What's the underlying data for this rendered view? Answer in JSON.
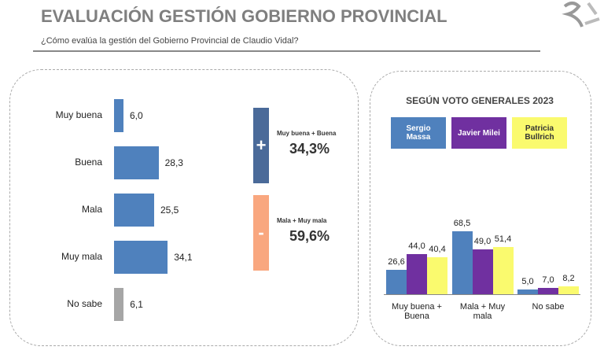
{
  "title": "EVALUACIÓN GESTIÓN GOBIERNO PROVINCIAL",
  "subtitle": "¿Cómo evalúa la gestión del Gobierno Provincial de Claudio Vidal?",
  "summary": [
    {
      "sign": "+",
      "label": "Muy buena + Buena",
      "value": "34,3%",
      "color": "#4a6a99"
    },
    {
      "sign": "-",
      "label": "Mala + Muy mala",
      "value": "59,6%",
      "color": "#f9a77f"
    }
  ],
  "chart_data": [
    {
      "type": "hbar",
      "categories": [
        "Muy buena",
        "Buena",
        "Mala",
        "Muy mala",
        "No sabe"
      ],
      "values": [
        6.0,
        28.3,
        25.5,
        34.1,
        6.1
      ],
      "value_labels": [
        "6,0",
        "28,3",
        "25,5",
        "34,1",
        "6,1"
      ],
      "colors": [
        "#4f81bd",
        "#4f81bd",
        "#4f81bd",
        "#4f81bd",
        "#a6a6a6"
      ]
    },
    {
      "type": "bar",
      "title": "SEGÚN VOTO GENERALES 2023",
      "categories": [
        "Muy buena + Buena",
        "Mala + Muy mala",
        "No sabe"
      ],
      "series": [
        {
          "name": "Sergio Massa",
          "color": "#4f81bd",
          "values": [
            26.6,
            68.5,
            5.0
          ],
          "value_labels": [
            "26,6",
            "68,5",
            "5,0"
          ]
        },
        {
          "name": "Javier Milei",
          "color": "#7030a0",
          "values": [
            44.0,
            49.0,
            7.0
          ],
          "value_labels": [
            "44,0",
            "49,0",
            "7,0"
          ]
        },
        {
          "name": "Patricia Bullrich",
          "color": "#fafa6e",
          "values": [
            40.4,
            51.4,
            8.2
          ],
          "value_labels": [
            "40,4",
            "51,4",
            "8,2"
          ]
        }
      ]
    }
  ]
}
